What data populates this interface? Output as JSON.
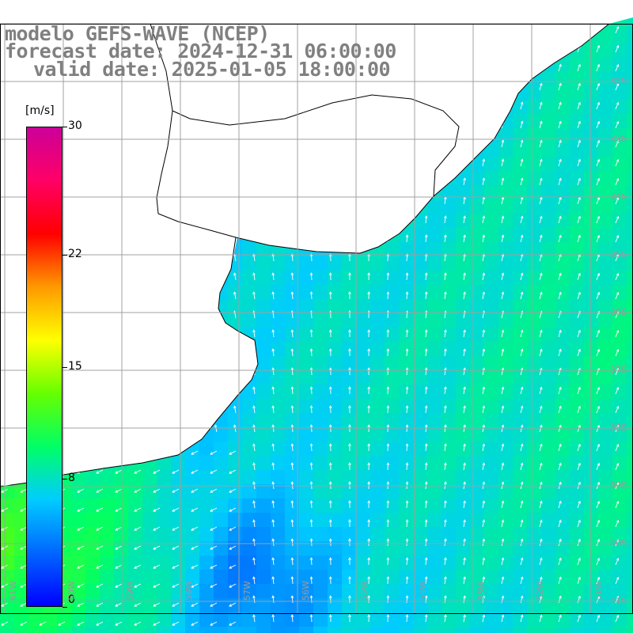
{
  "titles": {
    "model": "modelo GEFS-WAVE (NCEP)",
    "forecast": "forecast date: 2024-12-31 06:00:00",
    "valid": "valid date: 2025-01-05 18:00:00"
  },
  "colorbar": {
    "unit": "[m/s]",
    "ticks": [
      "30",
      "22",
      "15",
      "8",
      "0"
    ],
    "tick_values": [
      30,
      22,
      15,
      8,
      0
    ],
    "min": 0,
    "max": 30,
    "stops": [
      "#0000ff",
      "#0066ff",
      "#00ccff",
      "#00ff66",
      "#66ff00",
      "#ffff00",
      "#ff9900",
      "#ff0000",
      "#ff0066",
      "#cc0099"
    ]
  },
  "map": {
    "lat_labels": [
      "32S",
      "33S",
      "34S",
      "35S",
      "36S",
      "37S",
      "38S",
      "39S",
      "40S",
      "41S"
    ],
    "lon_labels": [
      "61W",
      "60W",
      "59W",
      "58W",
      "57W",
      "56W",
      "55W",
      "54W",
      "53W",
      "52W",
      "51W"
    ],
    "land_color": "#ffffff",
    "grid_color": "#a0a0a0",
    "coast_color": "#000000"
  }
}
